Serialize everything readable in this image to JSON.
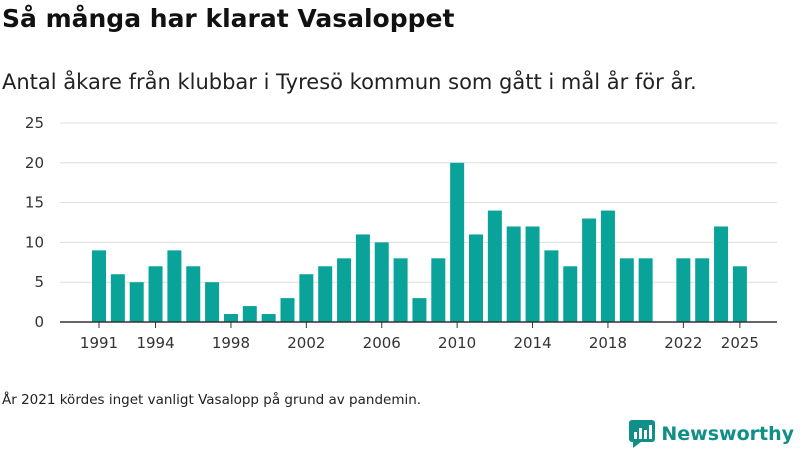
{
  "title": "Så många har klarat Vasaloppet",
  "subtitle": "Antal åkare från klubbar i Tyresö kommun som gått i mål år för år.",
  "footnote": "År 2021 kördes inget vanligt Vasalopp på grund av pandemin.",
  "brand": {
    "name": "Newsworthy",
    "icon": "newsworthy-logo-icon",
    "color": "#0f8f87"
  },
  "colors": {
    "bar": "#0aa39a",
    "grid": "#dddddd",
    "axis": "#333333"
  },
  "chart_data": {
    "type": "bar",
    "x": [
      1991,
      1992,
      1993,
      1994,
      1995,
      1996,
      1997,
      1998,
      1999,
      2000,
      2001,
      2002,
      2003,
      2004,
      2005,
      2006,
      2007,
      2008,
      2009,
      2010,
      2011,
      2012,
      2013,
      2014,
      2015,
      2016,
      2017,
      2018,
      2019,
      2020,
      2021,
      2022,
      2023,
      2024,
      2025
    ],
    "values": [
      9,
      6,
      5,
      7,
      9,
      7,
      5,
      1,
      2,
      1,
      3,
      6,
      7,
      8,
      11,
      10,
      8,
      3,
      8,
      20,
      11,
      14,
      12,
      12,
      9,
      7,
      13,
      14,
      8,
      8,
      null,
      8,
      8,
      12,
      7
    ],
    "x_tick_labels": [
      "1991",
      "1994",
      "1998",
      "2002",
      "2006",
      "2010",
      "2014",
      "2018",
      "2022",
      "2025"
    ],
    "y_ticks": [
      0,
      5,
      10,
      15,
      20,
      25
    ],
    "ylim": [
      0,
      25
    ],
    "title": "Så många har klarat Vasaloppet",
    "subtitle": "Antal åkare från klubbar i Tyresö kommun som gått i mål år för år.",
    "xlabel": "",
    "ylabel": "",
    "grid": true,
    "legend": "none"
  }
}
